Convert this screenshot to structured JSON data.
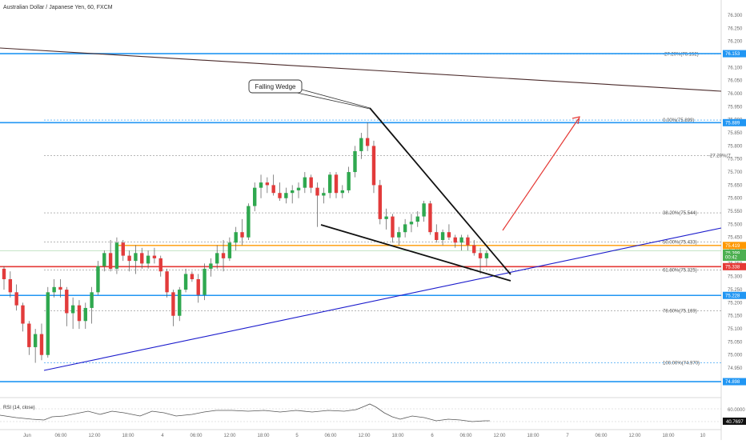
{
  "chart_data": {
    "type": "candlestick",
    "title": "Australian Dollar / Japanese Yen, 60, FXCM",
    "ylim": [
      74.84,
      76.34
    ],
    "y_ticks": [
      "76.300",
      "76.250",
      "76.200",
      "76.150",
      "76.100",
      "76.050",
      "76.000",
      "75.950",
      "75.900",
      "75.850",
      "75.800",
      "75.750",
      "75.700",
      "75.650",
      "75.600",
      "75.550",
      "75.500",
      "75.450",
      "75.400",
      "75.350",
      "75.300",
      "75.250",
      "75.200",
      "75.150",
      "75.100",
      "75.050",
      "75.000",
      "74.950",
      "74.900"
    ],
    "x_ticks": [
      "Jun",
      "06:00",
      "12:00",
      "18:00",
      "4",
      "06:00",
      "12:00",
      "18:00",
      "5",
      "06:00",
      "12:00",
      "18:00",
      "6",
      "06:00",
      "12:00",
      "18:00",
      "7",
      "06:00",
      "12:00",
      "18:00",
      "10"
    ],
    "price_tags": [
      {
        "label": "76.153",
        "color": "#2196f3"
      },
      {
        "label": "75.889",
        "color": "#2196f3"
      },
      {
        "label": "75.419",
        "color": "#ff9800"
      },
      {
        "label": "75.399",
        "color": "#4caf50"
      },
      {
        "label": "00:42",
        "color": "#4caf50"
      },
      {
        "label": "75.338",
        "color": "#e53935"
      },
      {
        "label": "75.228",
        "color": "#2196f3"
      },
      {
        "label": "74.898",
        "color": "#2196f3"
      }
    ],
    "fib_labels": [
      "-27.20%(76.152)",
      "0.00%(75.899)",
      "-27.20%(7",
      "38.20%(75.544)",
      "50.00%(75.433)",
      "61.80%(75.325)",
      "78.60%(75.169)",
      "100.00%(74.970)"
    ],
    "annotation": "Falling Wedge",
    "candles": [
      [
        75.33,
        75.34,
        75.25,
        75.29
      ],
      [
        75.29,
        75.32,
        75.22,
        75.24
      ],
      [
        75.24,
        75.27,
        75.17,
        75.19
      ],
      [
        75.19,
        75.2,
        75.09,
        75.12
      ],
      [
        75.12,
        75.13,
        75.0,
        75.03
      ],
      [
        75.03,
        75.1,
        74.97,
        75.08
      ],
      [
        75.08,
        75.12,
        74.98,
        75.0
      ],
      [
        75.0,
        75.26,
        74.99,
        75.24
      ],
      [
        75.24,
        75.29,
        75.22,
        75.26
      ],
      [
        75.26,
        75.29,
        75.22,
        75.25
      ],
      [
        75.25,
        75.26,
        75.11,
        75.16
      ],
      [
        75.16,
        75.22,
        75.1,
        75.19
      ],
      [
        75.19,
        75.21,
        75.1,
        75.13
      ],
      [
        75.13,
        75.2,
        75.1,
        75.18
      ],
      [
        75.18,
        75.26,
        75.12,
        75.24
      ],
      [
        75.24,
        75.36,
        75.23,
        75.34
      ],
      [
        75.34,
        75.4,
        75.32,
        75.39
      ],
      [
        75.39,
        75.44,
        75.32,
        75.33
      ],
      [
        75.33,
        75.45,
        75.31,
        75.43
      ],
      [
        75.43,
        75.44,
        75.36,
        75.38
      ],
      [
        75.38,
        75.4,
        75.32,
        75.36
      ],
      [
        75.36,
        75.42,
        75.31,
        75.39
      ],
      [
        75.39,
        75.41,
        75.33,
        75.35
      ],
      [
        75.35,
        75.4,
        75.33,
        75.38
      ],
      [
        75.38,
        75.41,
        75.35,
        75.37
      ],
      [
        75.37,
        75.38,
        75.3,
        75.32
      ],
      [
        75.32,
        75.33,
        75.22,
        75.24
      ],
      [
        75.24,
        75.25,
        75.11,
        75.15
      ],
      [
        75.15,
        75.26,
        75.13,
        75.25
      ],
      [
        75.25,
        75.33,
        75.24,
        75.31
      ],
      [
        75.31,
        75.32,
        75.28,
        75.29
      ],
      [
        75.29,
        75.31,
        75.2,
        75.23
      ],
      [
        75.23,
        75.35,
        75.21,
        75.33
      ],
      [
        75.33,
        75.37,
        75.3,
        75.35
      ],
      [
        75.35,
        75.42,
        75.33,
        75.39
      ],
      [
        75.39,
        75.44,
        75.32,
        75.37
      ],
      [
        75.37,
        75.45,
        75.36,
        75.43
      ],
      [
        75.43,
        75.49,
        75.4,
        75.47
      ],
      [
        75.47,
        75.52,
        75.42,
        75.45
      ],
      [
        75.45,
        75.58,
        75.44,
        75.57
      ],
      [
        75.57,
        75.66,
        75.55,
        75.64
      ],
      [
        75.64,
        75.69,
        75.6,
        75.66
      ],
      [
        75.66,
        75.68,
        75.62,
        75.65
      ],
      [
        75.65,
        75.69,
        75.61,
        75.62
      ],
      [
        75.62,
        75.66,
        75.59,
        75.6
      ],
      [
        75.6,
        75.64,
        75.58,
        75.62
      ],
      [
        75.62,
        75.65,
        75.58,
        75.63
      ],
      [
        75.63,
        75.66,
        75.6,
        75.64
      ],
      [
        75.64,
        75.7,
        75.62,
        75.68
      ],
      [
        75.68,
        75.69,
        75.62,
        75.64
      ],
      [
        75.64,
        75.66,
        75.49,
        75.61
      ],
      [
        75.61,
        75.64,
        75.58,
        75.62
      ],
      [
        75.62,
        75.7,
        75.6,
        75.69
      ],
      [
        75.69,
        75.7,
        75.6,
        75.62
      ],
      [
        75.62,
        75.65,
        75.6,
        75.63
      ],
      [
        75.63,
        75.72,
        75.62,
        75.7
      ],
      [
        75.7,
        75.8,
        75.68,
        75.78
      ],
      [
        75.78,
        75.85,
        75.75,
        75.83
      ],
      [
        75.83,
        75.89,
        75.78,
        75.8
      ],
      [
        75.8,
        75.82,
        75.62,
        75.65
      ],
      [
        75.65,
        75.67,
        75.5,
        75.52
      ],
      [
        75.52,
        75.56,
        75.48,
        75.53
      ],
      [
        75.53,
        75.54,
        75.43,
        75.45
      ],
      [
        75.45,
        75.49,
        75.42,
        75.47
      ],
      [
        75.47,
        75.52,
        75.45,
        75.5
      ],
      [
        75.5,
        75.54,
        75.47,
        75.51
      ],
      [
        75.51,
        75.55,
        75.49,
        75.53
      ],
      [
        75.53,
        75.59,
        75.51,
        75.58
      ],
      [
        75.58,
        75.59,
        75.46,
        75.47
      ],
      [
        75.47,
        75.5,
        75.43,
        75.44
      ],
      [
        75.44,
        75.48,
        75.42,
        75.47
      ],
      [
        75.47,
        75.5,
        75.44,
        75.45
      ],
      [
        75.45,
        75.46,
        75.41,
        75.43
      ],
      [
        75.43,
        75.46,
        75.4,
        75.45
      ],
      [
        75.45,
        75.46,
        75.4,
        75.42
      ],
      [
        75.42,
        75.44,
        75.38,
        75.39
      ],
      [
        75.39,
        75.41,
        75.31,
        75.37
      ],
      [
        75.37,
        75.4,
        75.34,
        75.39
      ]
    ],
    "rsi": {
      "label": "RSI (14, close)",
      "ticks": [
        "60.0000",
        "40.7697"
      ],
      "value": "40.7697"
    }
  }
}
